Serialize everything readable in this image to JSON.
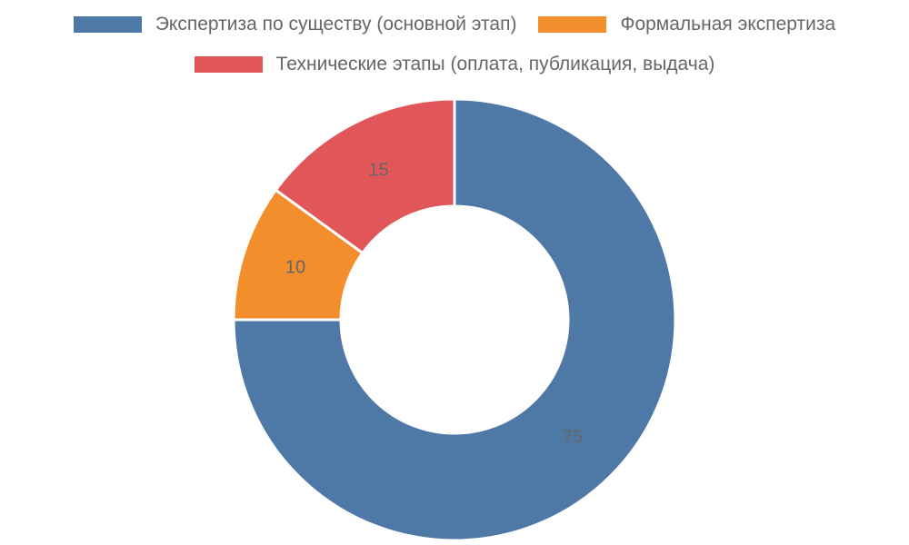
{
  "chart_data": {
    "type": "donut",
    "categories": [
      "Экспертиза по существу (основной этап)",
      "Формальная экспертиза",
      "Технические этапы (оплата, публикация, выдача)"
    ],
    "values": [
      75,
      10,
      15
    ],
    "colors": [
      "#4e79a7",
      "#f28e2b",
      "#e15759"
    ],
    "legend": "top"
  }
}
